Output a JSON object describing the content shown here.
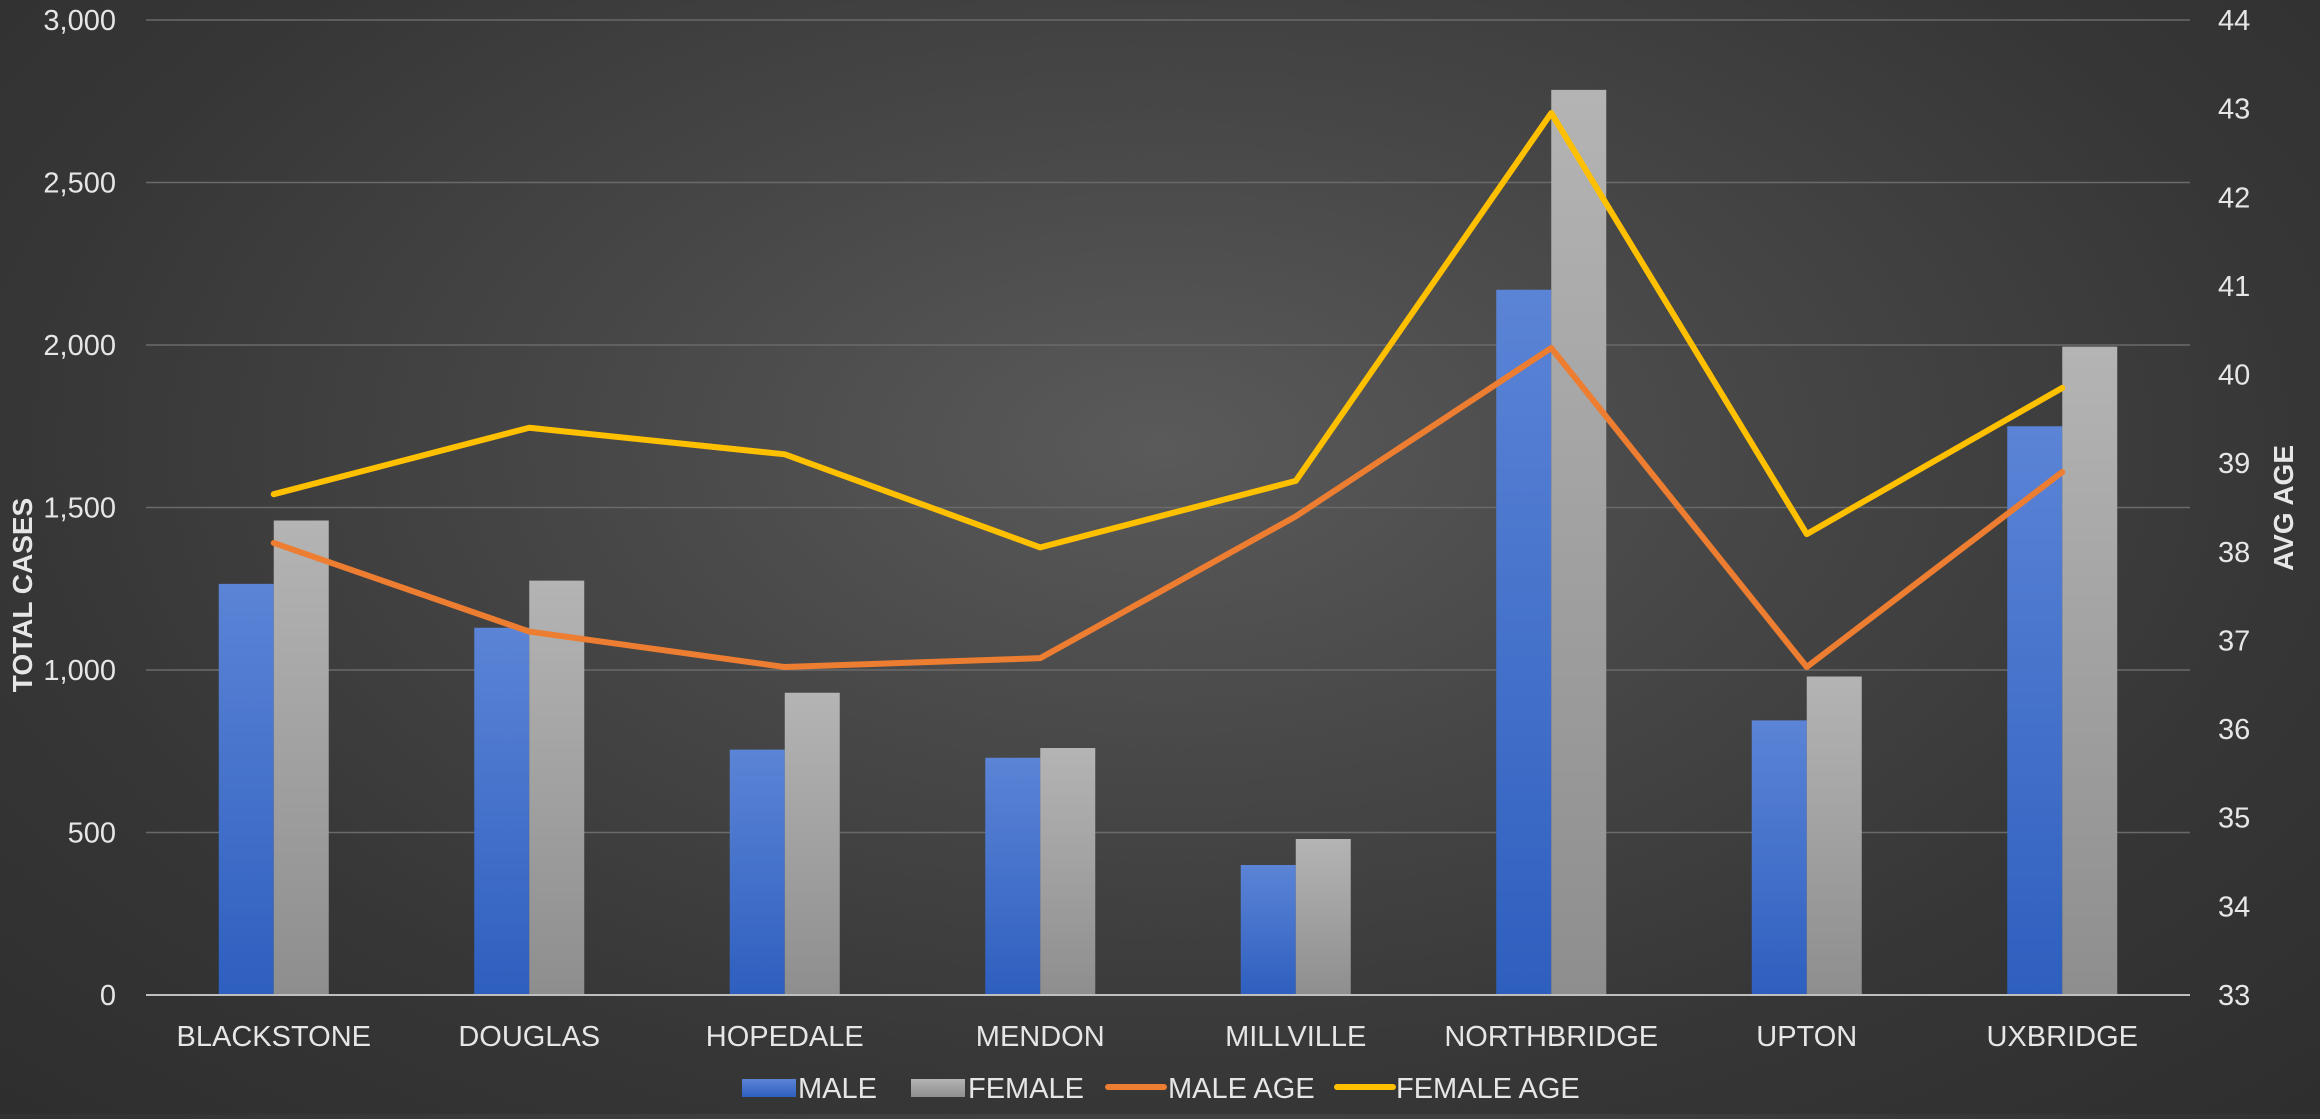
{
  "chart_data": {
    "type": "bar",
    "categories": [
      "BLACKSTONE",
      "DOUGLAS",
      "HOPEDALE",
      "MENDON",
      "MILLVILLE",
      "NORTHBRIDGE",
      "UPTON",
      "UXBRIDGE"
    ],
    "series": [
      {
        "name": "MALE",
        "type": "bar",
        "axis": "left",
        "color": "#4472c4",
        "values": [
          1265,
          1130,
          755,
          730,
          400,
          2170,
          845,
          1750
        ]
      },
      {
        "name": "FEMALE",
        "type": "bar",
        "axis": "left",
        "color": "#a5a5a5",
        "values": [
          1460,
          1275,
          930,
          760,
          480,
          2785,
          980,
          1995
        ]
      },
      {
        "name": "MALE AGE",
        "type": "line",
        "axis": "right",
        "color": "#ed7d31",
        "values": [
          38.1,
          37.1,
          36.7,
          36.8,
          38.4,
          40.3,
          36.7,
          38.9
        ]
      },
      {
        "name": "FEMALE AGE",
        "type": "line",
        "axis": "right",
        "color": "#ffc000",
        "values": [
          38.65,
          39.4,
          39.1,
          38.05,
          38.8,
          42.95,
          38.2,
          39.85
        ]
      }
    ],
    "ylabel": "TOTAL CASES",
    "ylim": [
      0,
      3000
    ],
    "yticks": [
      "0",
      "500",
      "1,000",
      "1,500",
      "2,000",
      "2,500",
      "3,000"
    ],
    "y2label": "AVG AGE",
    "y2lim": [
      33,
      44
    ],
    "y2ticks": [
      "33",
      "34",
      "35",
      "36",
      "37",
      "38",
      "39",
      "40",
      "41",
      "42",
      "43",
      "44"
    ],
    "grid": true,
    "legend": "bottom"
  }
}
